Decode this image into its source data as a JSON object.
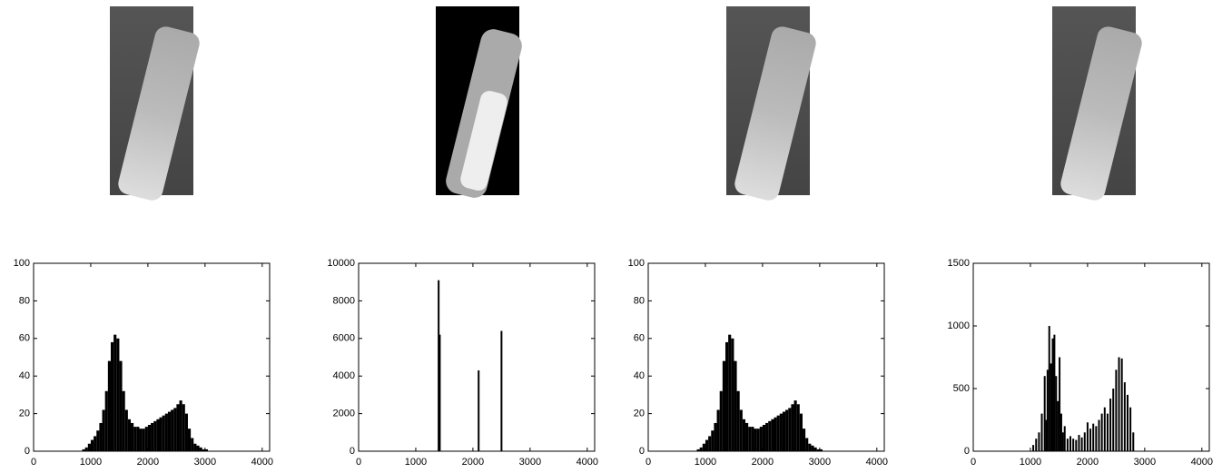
{
  "chart_data": [
    {
      "type": "histogram",
      "bins": [
        850,
        900,
        950,
        1000,
        1050,
        1100,
        1150,
        1200,
        1250,
        1300,
        1350,
        1400,
        1450,
        1500,
        1550,
        1600,
        1650,
        1700,
        1750,
        1800,
        1850,
        1900,
        1950,
        2000,
        2050,
        2100,
        2150,
        2200,
        2250,
        2300,
        2350,
        2400,
        2450,
        2500,
        2550,
        2600,
        2650,
        2700,
        2750,
        2800,
        2850,
        2900,
        2950,
        3000,
        3050,
        3100
      ],
      "values": [
        1,
        2,
        4,
        6,
        8,
        11,
        15,
        22,
        32,
        48,
        58,
        62,
        60,
        48,
        32,
        22,
        17,
        15,
        13,
        13,
        12,
        12,
        13,
        14,
        15,
        16,
        17,
        18,
        19,
        20,
        21,
        22,
        23,
        25,
        27,
        25,
        20,
        12,
        7,
        4,
        3,
        2,
        1,
        1,
        0
      ],
      "color": "#000000",
      "xlim": [
        0,
        4130
      ],
      "xticks": [
        0,
        1000,
        2000,
        3000,
        4000
      ],
      "ylim": [
        0,
        100
      ],
      "yticks": [
        0,
        20,
        40,
        60,
        80,
        100
      ]
    },
    {
      "type": "bar",
      "x": [
        1400,
        1420,
        2100,
        2500
      ],
      "values": [
        9100,
        6200,
        4300,
        6400
      ],
      "color": "#000000",
      "xlim": [
        0,
        4130
      ],
      "xticks": [
        0,
        1000,
        2000,
        3000,
        4000
      ],
      "ylim": [
        0,
        10000
      ],
      "yticks": [
        0,
        2000,
        4000,
        6000,
        8000,
        10000
      ]
    },
    {
      "type": "histogram",
      "bins": [
        850,
        900,
        950,
        1000,
        1050,
        1100,
        1150,
        1200,
        1250,
        1300,
        1350,
        1400,
        1450,
        1500,
        1550,
        1600,
        1650,
        1700,
        1750,
        1800,
        1850,
        1900,
        1950,
        2000,
        2050,
        2100,
        2150,
        2200,
        2250,
        2300,
        2350,
        2400,
        2450,
        2500,
        2550,
        2600,
        2650,
        2700,
        2750,
        2800,
        2850,
        2900,
        2950,
        3000,
        3050,
        3100
      ],
      "values": [
        1,
        2,
        4,
        6,
        8,
        11,
        15,
        22,
        32,
        48,
        58,
        62,
        60,
        48,
        32,
        22,
        17,
        15,
        13,
        13,
        12,
        12,
        13,
        14,
        15,
        16,
        17,
        18,
        19,
        20,
        21,
        22,
        23,
        25,
        27,
        25,
        20,
        12,
        7,
        4,
        3,
        2,
        1,
        1,
        0
      ],
      "color": "#000000",
      "xlim": [
        0,
        4130
      ],
      "xticks": [
        0,
        1000,
        2000,
        3000,
        4000
      ],
      "ylim": [
        0,
        100
      ],
      "yticks": [
        0,
        20,
        40,
        60,
        80,
        100
      ]
    },
    {
      "type": "bar",
      "x": [
        1050,
        1100,
        1150,
        1200,
        1250,
        1280,
        1300,
        1330,
        1360,
        1390,
        1420,
        1450,
        1480,
        1510,
        1540,
        1570,
        1600,
        1650,
        1700,
        1750,
        1800,
        1850,
        1900,
        1950,
        2000,
        2050,
        2100,
        2150,
        2200,
        2250,
        2300,
        2350,
        2400,
        2450,
        2500,
        2550,
        2600,
        2650,
        2700,
        2750,
        2800
      ],
      "values": [
        50,
        100,
        150,
        300,
        600,
        250,
        650,
        1000,
        700,
        900,
        930,
        600,
        400,
        750,
        300,
        150,
        200,
        100,
        120,
        100,
        90,
        130,
        110,
        150,
        230,
        180,
        220,
        200,
        250,
        300,
        350,
        300,
        420,
        500,
        650,
        750,
        740,
        550,
        450,
        350,
        150
      ],
      "color": "#000000",
      "xlim": [
        0,
        4130
      ],
      "xticks": [
        0,
        1000,
        2000,
        3000,
        4000
      ],
      "ylim": [
        0,
        1500
      ],
      "yticks": [
        0,
        500,
        1000,
        1500
      ]
    }
  ]
}
